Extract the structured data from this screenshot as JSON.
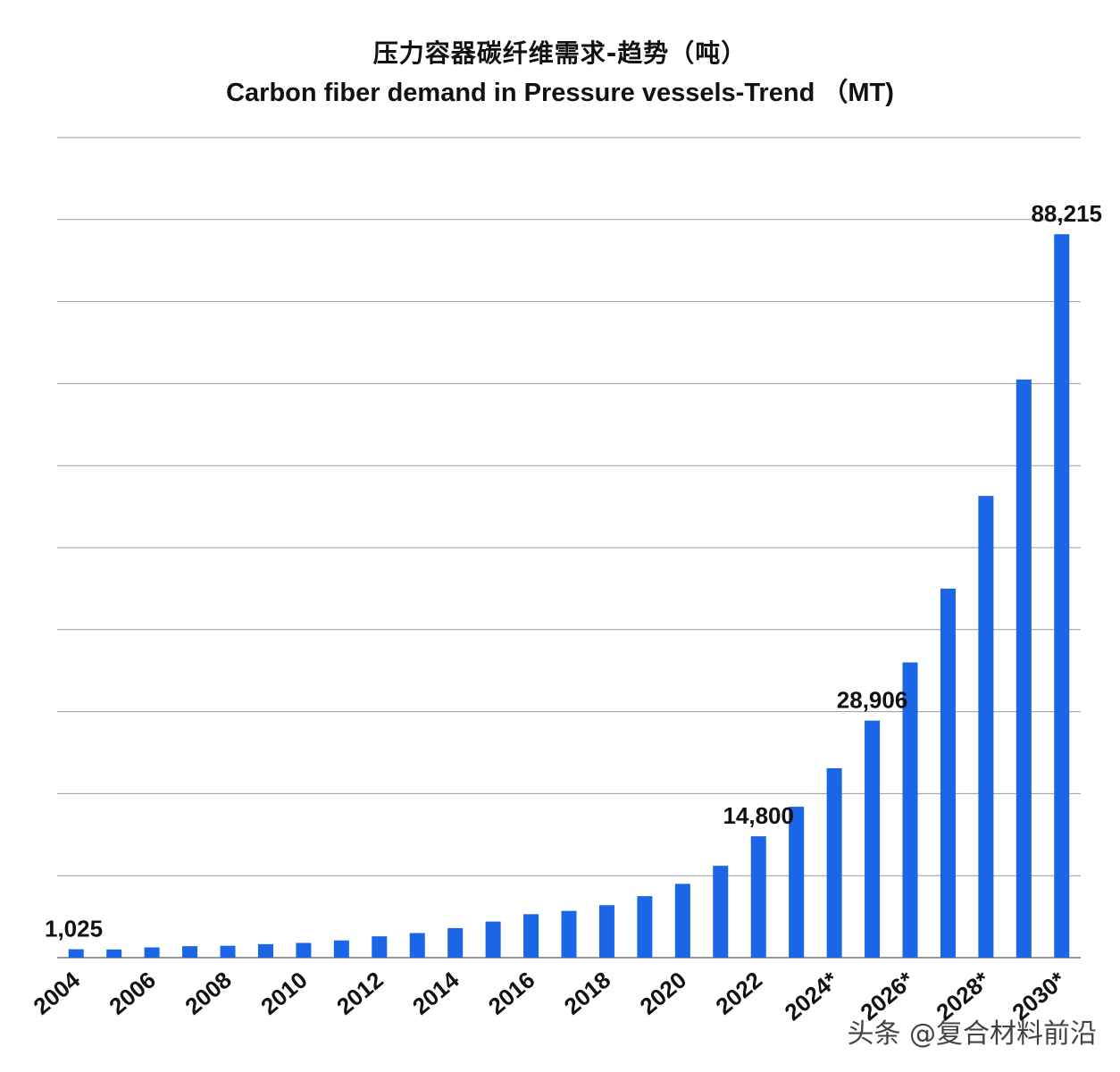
{
  "watermark": "头条 @复合材料前沿",
  "colors": {
    "bar": "#1a66e6",
    "grid": "#9a9a9a",
    "text": "#111111"
  },
  "chart_data": {
    "type": "bar",
    "title": "压力容器碳纤维需求-趋势（吨）",
    "subtitle": "Carbon fiber demand in Pressure vessels-Trend （MT)",
    "xlabel": "",
    "ylabel": "",
    "ylim": [
      0,
      100000
    ],
    "grid": true,
    "categories": [
      "2004",
      "2005",
      "2006",
      "2007",
      "2008",
      "2009",
      "2010",
      "2011",
      "2012",
      "2013",
      "2014",
      "2015",
      "2016",
      "2017",
      "2018",
      "2019",
      "2020",
      "2021",
      "2022",
      "2023",
      "2024*",
      "2025*",
      "2026*",
      "2027*",
      "2028*",
      "2029*",
      "2030*"
    ],
    "x_tick_labels": [
      "2004",
      "2006",
      "2008",
      "2010",
      "2012",
      "2014",
      "2016",
      "2018",
      "2020",
      "2022",
      "2024*",
      "2026*",
      "2028*",
      "2030*"
    ],
    "values": [
      1025,
      1000,
      1250,
      1400,
      1450,
      1650,
      1800,
      2100,
      2600,
      3000,
      3600,
      4400,
      5300,
      5700,
      6400,
      7500,
      9000,
      11200,
      14800,
      18400,
      23100,
      28906,
      36000,
      45000,
      56300,
      70500,
      88215
    ],
    "data_labels": [
      {
        "category": "2004",
        "text": "1,025"
      },
      {
        "category": "2022",
        "text": "14,800"
      },
      {
        "category": "2025*",
        "text": "28,906"
      },
      {
        "category": "2030*",
        "text": "88,215"
      }
    ]
  }
}
